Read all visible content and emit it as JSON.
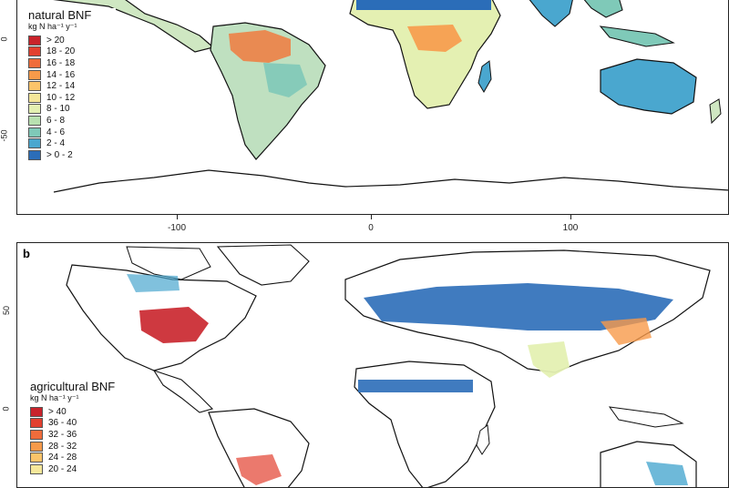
{
  "panel_a": {
    "legend": {
      "title": "natural BNF",
      "units": "kg N ha⁻¹ y⁻¹",
      "items": [
        {
          "label": "> 20",
          "color": "#c9232b"
        },
        {
          "label": "18 - 20",
          "color": "#e2402f"
        },
        {
          "label": "16 - 18",
          "color": "#f06c3b"
        },
        {
          "label": "14 - 16",
          "color": "#f79a4a"
        },
        {
          "label": "12 - 14",
          "color": "#fbc46a"
        },
        {
          "label": "10 - 12",
          "color": "#f5e79a"
        },
        {
          "label": "8 - 10",
          "color": "#e4f0b2"
        },
        {
          "label": "6 - 8",
          "color": "#b8e0b0"
        },
        {
          "label": "4 - 6",
          "color": "#7fc9b8"
        },
        {
          "label": "2 - 4",
          "color": "#4aa7cf"
        },
        {
          "label": "> 0 - 2",
          "color": "#2b6db8"
        }
      ]
    },
    "y_ticks": [
      "0",
      "-50"
    ],
    "x_ticks": [
      "-100",
      "0",
      "100"
    ]
  },
  "panel_b": {
    "letter": "b",
    "legend": {
      "title": "agricultural BNF",
      "units": "kg N ha⁻¹ y⁻¹",
      "items": [
        {
          "label": "> 40",
          "color": "#c9232b"
        },
        {
          "label": "36 - 40",
          "color": "#e2402f"
        },
        {
          "label": "32 - 36",
          "color": "#f06c3b"
        },
        {
          "label": "28 - 32",
          "color": "#f79a4a"
        },
        {
          "label": "24 - 28",
          "color": "#fbc46a"
        },
        {
          "label": "20 - 24",
          "color": "#f5e79a"
        }
      ]
    },
    "y_ticks": [
      "50",
      "0"
    ]
  }
}
